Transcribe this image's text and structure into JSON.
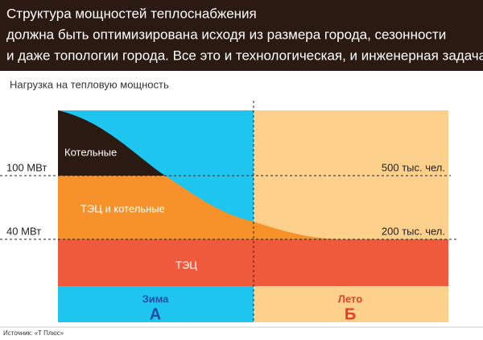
{
  "header": {
    "lines": [
      "Структура мощностей теплоснабжения",
      "должна быть оптимизирована исходя из размера города, сезонности",
      "и даже топологии города. Все это и технологическая, и инженерная задача"
    ]
  },
  "subtitle": "Нагрузка на тепловую мощность",
  "levels": [
    {
      "left": "100 МВт",
      "right": "500 тыс. чел."
    },
    {
      "left": "40 МВт",
      "right": "200 тыс. чел."
    }
  ],
  "areas": [
    "Котельные",
    "ТЭЦ и котельные",
    "ТЭЦ"
  ],
  "seasons": [
    {
      "name": "Зима",
      "letter": "А"
    },
    {
      "name": "Лето",
      "letter": "Б"
    }
  ],
  "source": "Источник: «Т Плюс»"
}
